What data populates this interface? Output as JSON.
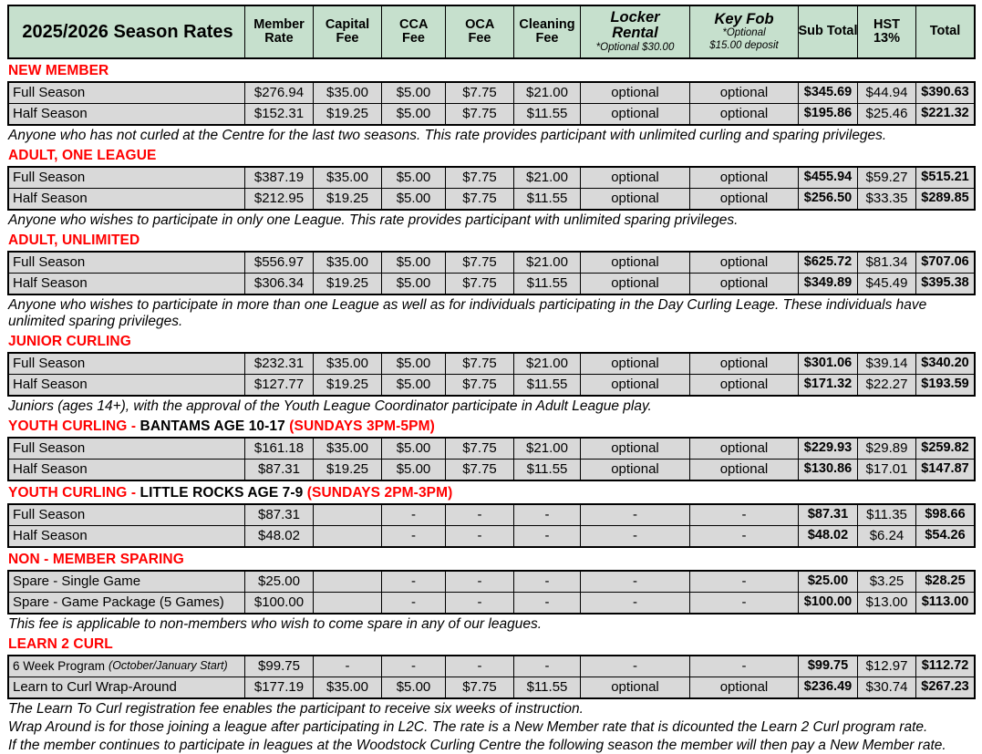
{
  "header": {
    "title": "2025/2026 Season Rates",
    "columns": [
      {
        "key": "member-rate",
        "label": "Member Rate"
      },
      {
        "key": "capital-fee",
        "label": "Capital Fee"
      },
      {
        "key": "cca-fee",
        "label": "CCA Fee"
      },
      {
        "key": "oca-fee",
        "label": "OCA Fee"
      },
      {
        "key": "cleaning-fee",
        "label": "Cleaning Fee"
      },
      {
        "key": "locker-rental",
        "label": "Locker Rental",
        "sub": [
          "*Optional $30.00"
        ],
        "fancy": true
      },
      {
        "key": "key-fob",
        "label": "Key Fob",
        "sub": [
          "*Optional",
          "$15.00 deposit"
        ],
        "fancy": true
      },
      {
        "key": "sub-total",
        "label": "Sub Total"
      },
      {
        "key": "hst",
        "label": "HST 13%"
      },
      {
        "key": "total",
        "label": "Total"
      }
    ]
  },
  "colors": {
    "header_bg": "#c6e0cd",
    "row_bg": "#d9d9d9",
    "section_heading": "#ff0000",
    "border": "#000000"
  },
  "sections": [
    {
      "title": [
        {
          "text": "NEW MEMBER",
          "color": "red"
        }
      ],
      "rows": [
        {
          "label": "Full Season",
          "values": [
            "$276.94",
            "$35.00",
            "$5.00",
            "$7.75",
            "$21.00",
            "optional",
            "optional",
            "$345.69",
            "$44.94",
            "$390.63"
          ]
        },
        {
          "label": "Half Season",
          "values": [
            "$152.31",
            "$19.25",
            "$5.00",
            "$7.75",
            "$11.55",
            "optional",
            "optional",
            "$195.86",
            "$25.46",
            "$221.32"
          ]
        }
      ],
      "notes": [
        "Anyone who has not curled at the Centre for the last two seasons. This rate provides participant with unlimited curling and sparing privileges."
      ]
    },
    {
      "title": [
        {
          "text": "ADULT, ONE LEAGUE",
          "color": "red"
        }
      ],
      "rows": [
        {
          "label": "Full Season",
          "values": [
            "$387.19",
            "$35.00",
            "$5.00",
            "$7.75",
            "$21.00",
            "optional",
            "optional",
            "$455.94",
            "$59.27",
            "$515.21"
          ]
        },
        {
          "label": "Half Season",
          "values": [
            "$212.95",
            "$19.25",
            "$5.00",
            "$7.75",
            "$11.55",
            "optional",
            "optional",
            "$256.50",
            "$33.35",
            "$289.85"
          ]
        }
      ],
      "notes": [
        "Anyone who wishes to participate in only one League. This rate provides participant with unlimited sparing privileges."
      ]
    },
    {
      "title": [
        {
          "text": "ADULT, UNLIMITED",
          "color": "red"
        }
      ],
      "rows": [
        {
          "label": "Full Season",
          "values": [
            "$556.97",
            "$35.00",
            "$5.00",
            "$7.75",
            "$21.00",
            "optional",
            "optional",
            "$625.72",
            "$81.34",
            "$707.06"
          ]
        },
        {
          "label": "Half Season",
          "values": [
            "$306.34",
            "$19.25",
            "$5.00",
            "$7.75",
            "$11.55",
            "optional",
            "optional",
            "$349.89",
            "$45.49",
            "$395.38"
          ]
        }
      ],
      "notes": [
        "Anyone who wishes to participate in more than one League as well as for individuals participating in the Day Curling Leage. These individuals have unlimited sparing privileges."
      ]
    },
    {
      "title": [
        {
          "text": "JUNIOR CURLING",
          "color": "red"
        }
      ],
      "rows": [
        {
          "label": "Full Season",
          "values": [
            "$232.31",
            "$35.00",
            "$5.00",
            "$7.75",
            "$21.00",
            "optional",
            "optional",
            "$301.06",
            "$39.14",
            "$340.20"
          ]
        },
        {
          "label": "Half Season",
          "values": [
            "$127.77",
            "$19.25",
            "$5.00",
            "$7.75",
            "$11.55",
            "optional",
            "optional",
            "$171.32",
            "$22.27",
            "$193.59"
          ]
        }
      ],
      "notes": [
        "Juniors (ages 14+), with the approval of the Youth League Coordinator participate in Adult League play."
      ]
    },
    {
      "title": [
        {
          "text": "YOUTH CURLING - ",
          "color": "red"
        },
        {
          "text": "BANTAMS AGE 10-17 ",
          "color": "black"
        },
        {
          "text": "(SUNDAYS 3PM-5PM)",
          "color": "red"
        }
      ],
      "rows": [
        {
          "label": "Full Season",
          "values": [
            "$161.18",
            "$35.00",
            "$5.00",
            "$7.75",
            "$21.00",
            "optional",
            "optional",
            "$229.93",
            "$29.89",
            "$259.82"
          ]
        },
        {
          "label": "Half Season",
          "values": [
            "$87.31",
            "$19.25",
            "$5.00",
            "$7.75",
            "$11.55",
            "optional",
            "optional",
            "$130.86",
            "$17.01",
            "$147.87"
          ]
        }
      ],
      "notes": []
    },
    {
      "title": [
        {
          "text": "YOUTH CURLING - ",
          "color": "red"
        },
        {
          "text": "LITTLE ROCKS AGE 7-9 ",
          "color": "black"
        },
        {
          "text": "(SUNDAYS 2PM-3PM)",
          "color": "red"
        }
      ],
      "rows": [
        {
          "label": "Full Season",
          "values": [
            "$87.31",
            "",
            "-",
            "-",
            "-",
            "-",
            "-",
            "$87.31",
            "$11.35",
            "$98.66"
          ]
        },
        {
          "label": "Half Season",
          "values": [
            "$48.02",
            "",
            "-",
            "-",
            "-",
            "-",
            "-",
            "$48.02",
            "$6.24",
            "$54.26"
          ]
        }
      ],
      "notes": []
    },
    {
      "title": [
        {
          "text": "NON - MEMBER SPARING",
          "color": "red"
        }
      ],
      "rows": [
        {
          "label": "Spare - Single Game",
          "values": [
            "$25.00",
            "",
            "-",
            "-",
            "-",
            "-",
            "-",
            "$25.00",
            "$3.25",
            "$28.25"
          ]
        },
        {
          "label": "Spare - Game Package (5 Games)",
          "values": [
            "$100.00",
            "",
            "-",
            "-",
            "-",
            "-",
            "-",
            "$100.00",
            "$13.00",
            "$113.00"
          ]
        }
      ],
      "notes": [
        "This fee is applicable to non-members who wish to come spare in any of our leagues."
      ]
    },
    {
      "title": [
        {
          "text": "LEARN 2 CURL",
          "color": "red"
        }
      ],
      "rows": [
        {
          "label": "6 Week Program",
          "label_suffix": "(October/January Start)",
          "values": [
            "$99.75",
            "-",
            "-",
            "-",
            "-",
            "-",
            "-",
            "$99.75",
            "$12.97",
            "$112.72"
          ]
        },
        {
          "label": "Learn to Curl Wrap-Around",
          "values": [
            "$177.19",
            "$35.00",
            "$5.00",
            "$7.75",
            "$11.55",
            "optional",
            "optional",
            "$236.49",
            "$30.74",
            "$267.23"
          ]
        }
      ],
      "notes": [
        "The Learn To Curl registration fee enables the participant to receive six weeks of instruction.",
        "Wrap Around is for those joining a league after participating in L2C.  The rate is a New Member rate that is dicounted the Learn 2 Curl program rate.",
        "If the member continues to participate in leagues at the Woodstock Curling Centre the following season the member will then pay a New Member rate."
      ]
    }
  ]
}
